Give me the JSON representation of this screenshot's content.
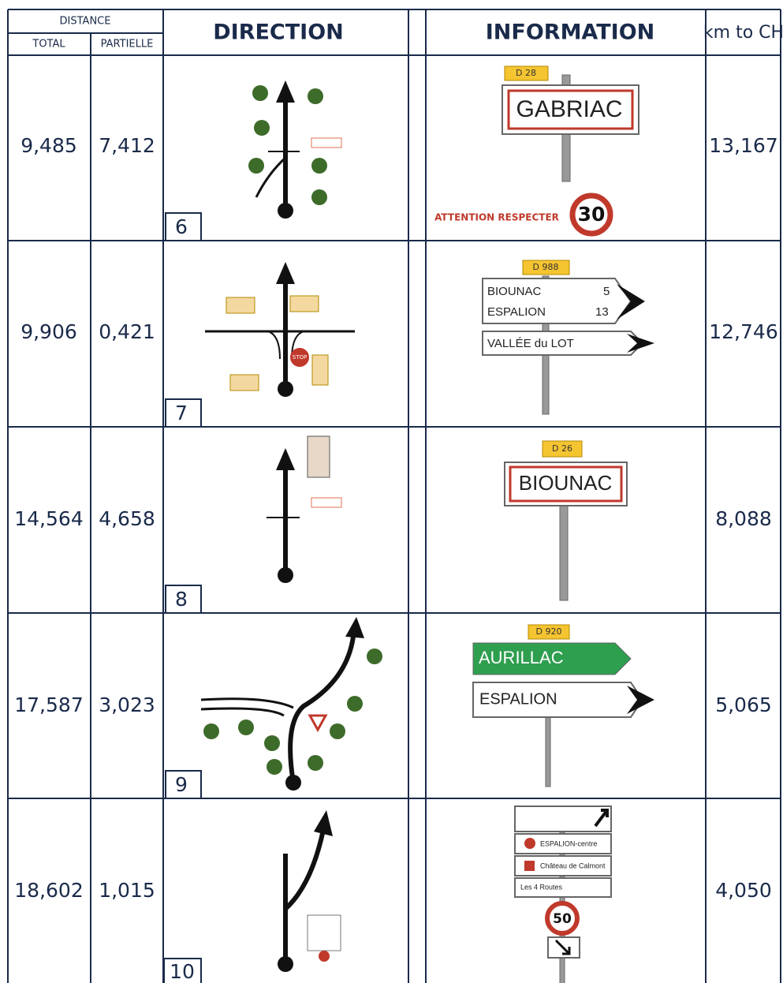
{
  "header": {
    "distance": "DISTANCE",
    "total": "TOTAL",
    "partielle": "PARTIELLE",
    "direction": "DIRECTION",
    "information": "INFORMATION",
    "km_to_ch": "km to CH"
  },
  "rows": [
    {
      "total": "9,485",
      "partielle": "7,412",
      "step": "6",
      "km_to_ch": "13,167",
      "sign": {
        "road": "D 28",
        "name": "GABRIAC",
        "note": "ATTENTION RESPECTER",
        "limit": "30"
      }
    },
    {
      "total": "9,906",
      "partielle": "0,421",
      "step": "7",
      "km_to_ch": "12,746",
      "stop": "STOP",
      "sign": {
        "road": "D 988",
        "line1": "BIOUNAC",
        "dist1": "5",
        "line2": "ESPALION",
        "dist2": "13",
        "line3": "VALLÉE du LOT"
      }
    },
    {
      "total": "14,564",
      "partielle": "4,658",
      "step": "8",
      "km_to_ch": "8,088",
      "sign": {
        "road": "D 26",
        "name": "BIOUNAC"
      }
    },
    {
      "total": "17,587",
      "partielle": "3,023",
      "step": "9",
      "km_to_ch": "5,065",
      "sign": {
        "road": "D 920",
        "line1": "AURILLAC",
        "line2": "ESPALION"
      }
    },
    {
      "total": "18,602",
      "partielle": "1,015",
      "step": "10",
      "km_to_ch": "4,050",
      "sign": {
        "line1": "ESPALION-centre",
        "line2": "Château de Calmont",
        "line3": "Les 4 Routes",
        "limit": "50"
      }
    }
  ]
}
